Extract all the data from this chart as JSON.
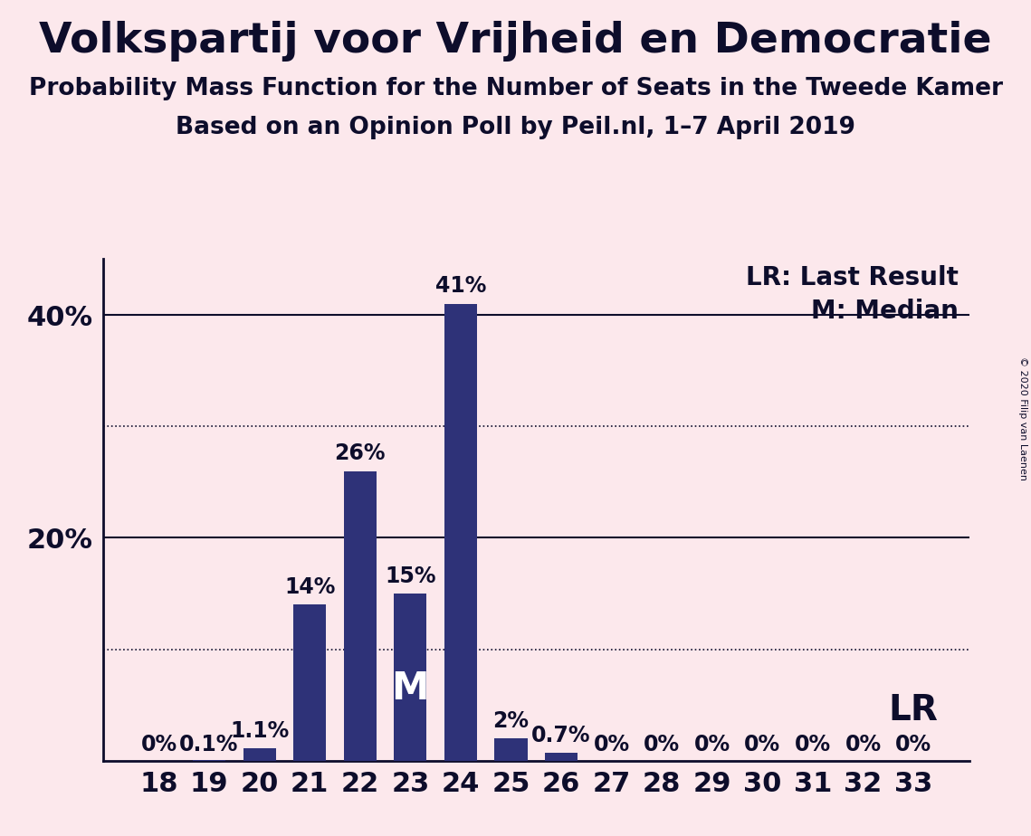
{
  "title": "Volkspartij voor Vrijheid en Democratie",
  "subtitle1": "Probability Mass Function for the Number of Seats in the Tweede Kamer",
  "subtitle2": "Based on an Opinion Poll by Peil.nl, 1–7 April 2019",
  "copyright": "© 2020 Filip van Laenen",
  "categories": [
    18,
    19,
    20,
    21,
    22,
    23,
    24,
    25,
    26,
    27,
    28,
    29,
    30,
    31,
    32,
    33
  ],
  "values": [
    0.0,
    0.1,
    1.1,
    14.0,
    26.0,
    15.0,
    41.0,
    2.0,
    0.7,
    0.0,
    0.0,
    0.0,
    0.0,
    0.0,
    0.0,
    0.0
  ],
  "bar_labels": [
    "0%",
    "0.1%",
    "1.1%",
    "14%",
    "26%",
    "15%",
    "41%",
    "2%",
    "0.7%",
    "0%",
    "0%",
    "0%",
    "0%",
    "0%",
    "0%",
    "0%"
  ],
  "bar_color": "#2e3278",
  "background_color": "#fce8ec",
  "title_fontsize": 34,
  "subtitle_fontsize": 19,
  "axis_tick_fontsize": 22,
  "bar_label_fontsize": 17,
  "legend_fontsize": 20,
  "median_label_fontsize": 30,
  "lr_label_fontsize": 28,
  "median_seat": 23,
  "lr_seat": 33,
  "ylim": [
    0,
    45
  ],
  "solid_yticks": [
    20,
    40
  ],
  "dotted_yticks": [
    10,
    30
  ],
  "legend_lr": "LR: Last Result",
  "legend_m": "M: Median",
  "text_color": "#0d0d2b"
}
